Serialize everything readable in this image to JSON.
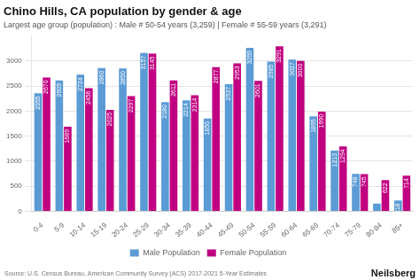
{
  "chart_data": {
    "type": "bar",
    "title": "Chino Hills, CA population by gender & age",
    "subtitle": "Largest age group (population) : Male # 50-54 years (3,259) | Female # 55-59 years (3,291)",
    "categories": [
      "0-4",
      "5-9",
      "10-14",
      "15-19",
      "20-24",
      "25-29",
      "30-34",
      "35-39",
      "40-44",
      "45-49",
      "50-54",
      "55-59",
      "60-64",
      "65-69",
      "70-74",
      "75-79",
      "80-84",
      "85+"
    ],
    "series": [
      {
        "name": "Male Population",
        "color": "#5b9bd5",
        "values": [
          2355,
          2609,
          2724,
          2860,
          2850,
          3157,
          2180,
          2214,
          1850,
          2537,
          3259,
          2985,
          3027,
          1895,
          1213,
          748,
          155,
          218
        ],
        "value_labels": [
          "2355",
          "2609",
          "2724",
          "2860",
          "2850",
          "3157",
          "2180",
          "2214",
          "1850",
          "2537",
          "3259",
          "2985",
          "3027",
          "1895",
          "1213",
          "748",
          null,
          "218"
        ]
      },
      {
        "name": "Female Population",
        "color": "#c00080",
        "values": [
          2670,
          1689,
          2456,
          2025,
          2297,
          3145,
          2611,
          2314,
          2877,
          2953,
          2601,
          3291,
          3000,
          1990,
          1294,
          745,
          622,
          714
        ]
      }
    ],
    "ylim": [
      0,
      3500
    ],
    "yticks": [
      0,
      500,
      1000,
      1500,
      2000,
      2500,
      3000
    ],
    "grid": true,
    "legend": "bottom",
    "data_labels": true,
    "annotations": [
      "Source: U.S. Census Bureau, American Community Survey (ACS) 2017-2021 5-Year Estimates",
      "Neilsberg"
    ]
  }
}
